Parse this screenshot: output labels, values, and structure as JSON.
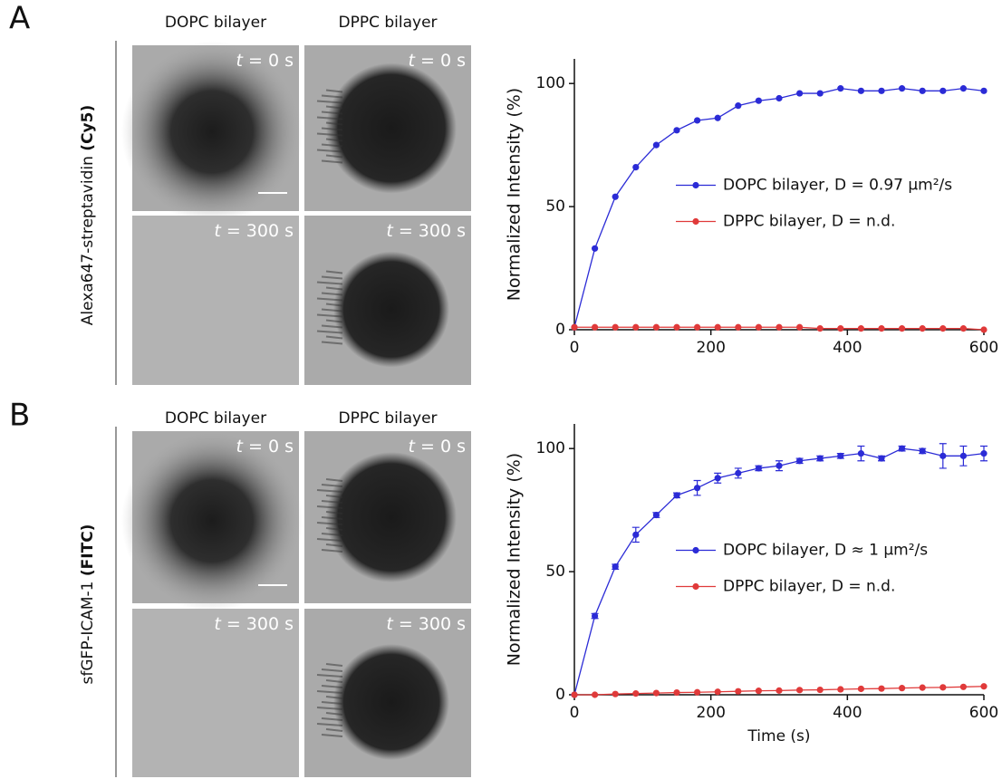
{
  "panels": [
    {
      "label": "A",
      "row_label": "Alexa647-streptavidin",
      "row_label_bold": "(Cy5)",
      "columns": [
        "DOPC bilayer",
        "DPPC bilayer"
      ],
      "time_var": "t",
      "time_labels": [
        "= 0 s",
        "= 0 s",
        "= 300 s",
        "= 300 s"
      ]
    },
    {
      "label": "B",
      "row_label": "sfGFP-ICAM-1",
      "row_label_bold": "(FITC)",
      "columns": [
        "DOPC bilayer",
        "DPPC bilayer"
      ],
      "time_var": "t",
      "time_labels": [
        "= 0 s",
        "= 0 s",
        "= 300 s",
        "= 300 s"
      ]
    }
  ],
  "chart_data": [
    {
      "type": "line",
      "ylabel": "Normalized Intensity (%)",
      "xlim": [
        0,
        600
      ],
      "ylim": [
        0,
        110
      ],
      "xticks": [
        0,
        200,
        400,
        600
      ],
      "yticks": [
        0,
        50,
        100
      ],
      "legend": "center right",
      "x": [
        0,
        30,
        60,
        90,
        120,
        150,
        180,
        210,
        240,
        270,
        300,
        330,
        360,
        390,
        420,
        450,
        480,
        510,
        540,
        570,
        600
      ],
      "series": [
        {
          "name": "DOPC bilayer, D = 0.97 µm²/s",
          "color": "#2b2bd6",
          "values": [
            1,
            33,
            54,
            66,
            75,
            81,
            85,
            86,
            91,
            93,
            94,
            96,
            96,
            98,
            97,
            97,
            98,
            97,
            97,
            98,
            97
          ]
        },
        {
          "name": "DPPC bilayer, D = n.d.",
          "color": "#e03a3a",
          "values": [
            1,
            1,
            1,
            1,
            1,
            1,
            1,
            1,
            1,
            1,
            1,
            1,
            0.5,
            0.5,
            0.5,
            0.5,
            0.5,
            0.5,
            0.5,
            0.5,
            0
          ]
        }
      ]
    },
    {
      "type": "line",
      "ylabel": "Normalized Intensity (%)",
      "xlabel": "Time (s)",
      "xlim": [
        0,
        600
      ],
      "ylim": [
        0,
        110
      ],
      "xticks": [
        0,
        200,
        400,
        600
      ],
      "yticks": [
        0,
        50,
        100
      ],
      "legend": "center right",
      "x": [
        0,
        30,
        60,
        90,
        120,
        150,
        180,
        210,
        240,
        270,
        300,
        330,
        360,
        390,
        420,
        450,
        480,
        510,
        540,
        570,
        600
      ],
      "series": [
        {
          "name": "DOPC bilayer, D ≈ 1 µm²/s",
          "color": "#2b2bd6",
          "values": [
            0,
            32,
            52,
            65,
            73,
            81,
            84,
            88,
            90,
            92,
            93,
            95,
            96,
            97,
            98,
            96,
            100,
            99,
            97,
            97,
            98
          ],
          "errors": [
            0,
            1,
            1,
            3,
            1,
            1,
            3,
            2,
            2,
            1,
            2,
            1,
            1,
            1,
            3,
            1,
            1,
            1,
            5,
            4,
            3
          ]
        },
        {
          "name": "DPPC bilayer, D = n.d.",
          "color": "#e03a3a",
          "values": [
            0,
            0,
            0.3,
            0.5,
            0.7,
            0.9,
            1,
            1.2,
            1.4,
            1.6,
            1.7,
            1.9,
            2,
            2.2,
            2.4,
            2.5,
            2.7,
            2.9,
            3,
            3.2,
            3.4
          ]
        }
      ]
    }
  ]
}
